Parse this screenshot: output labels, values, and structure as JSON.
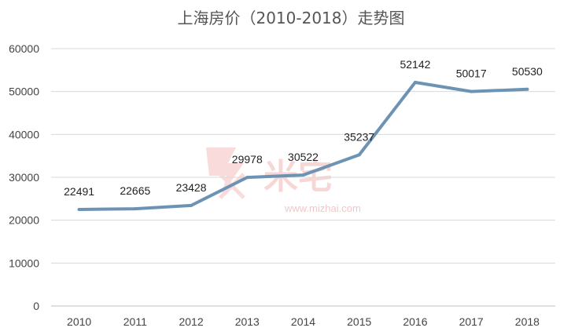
{
  "chart_data": {
    "type": "line",
    "title": "上海房价（2010-2018）走势图",
    "xlabel": "",
    "ylabel": "",
    "categories": [
      "2010",
      "2011",
      "2012",
      "2013",
      "2014",
      "2015",
      "2016",
      "2017",
      "2018"
    ],
    "series": [
      {
        "values": [
          22491,
          22665,
          23428,
          29978,
          30522,
          35237,
          52142,
          50017,
          50530
        ]
      }
    ],
    "data_labels": [
      "22491",
      "22665",
      "23428",
      "29978",
      "30522",
      "35237",
      "52142",
      "50017",
      "50530"
    ],
    "ylim": [
      0,
      60000
    ],
    "yticks": [
      0,
      10000,
      20000,
      30000,
      40000,
      50000,
      60000
    ],
    "ytick_labels": [
      "0",
      "10000",
      "20000",
      "30000",
      "40000",
      "50000",
      "60000"
    ],
    "grid": true,
    "legend": "none",
    "colors": {
      "series": "#6d93b4",
      "grid": "#d9d9d9"
    }
  },
  "watermark": {
    "text": "米宅",
    "url": "www.mizhai.com"
  }
}
